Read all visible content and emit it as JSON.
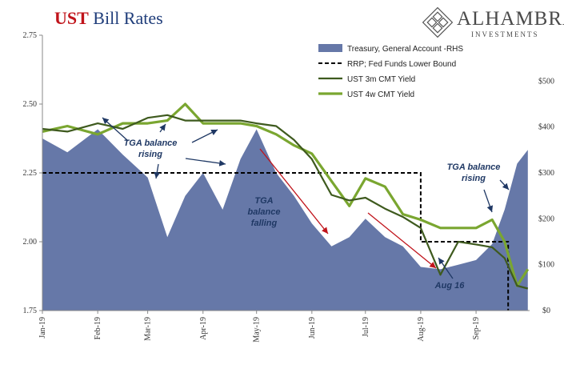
{
  "title": {
    "accent": "UST",
    "rest": "Bill Rates"
  },
  "logo": {
    "brand": "ALHAMBRA",
    "sub": "INVESTMENTS",
    "icon": "diamond-lattice-icon"
  },
  "chart_data": {
    "type": "line",
    "title": "UST Bill Rates",
    "x": [
      "2019-01-01",
      "2019-01-15",
      "2019-02-01",
      "2019-02-15",
      "2019-03-01",
      "2019-03-12",
      "2019-03-22",
      "2019-04-01",
      "2019-04-12",
      "2019-04-22",
      "2019-05-01",
      "2019-05-12",
      "2019-05-22",
      "2019-06-01",
      "2019-06-12",
      "2019-06-22",
      "2019-07-01",
      "2019-07-12",
      "2019-07-22",
      "2019-08-01",
      "2019-08-12",
      "2019-08-22",
      "2019-09-01",
      "2019-09-10",
      "2019-09-17",
      "2019-09-24",
      "2019-09-30"
    ],
    "x_tick_labels": [
      "Jan-19",
      "Feb-19",
      "Mar-19",
      "Apr-19",
      "May-19",
      "Jun-19",
      "Jul-19",
      "Aug-19",
      "Sep-19"
    ],
    "y_left": {
      "ticks": [
        "1.75",
        "2.00",
        "2.25",
        "2.50",
        "2.75"
      ],
      "ylim": [
        1.75,
        2.75
      ]
    },
    "y_right": {
      "ticks": [
        "$0",
        "$100",
        "$200",
        "$300",
        "$400",
        "$500"
      ],
      "ylim": [
        0,
        600
      ]
    },
    "grid": false,
    "legend_position": "top-right",
    "series": [
      {
        "name": "Treasury, General Account -RHS",
        "kind": "area",
        "axis": "right",
        "color": "#6678a8",
        "values": [
          375,
          345,
          395,
          340,
          290,
          160,
          250,
          300,
          220,
          330,
          395,
          300,
          250,
          190,
          140,
          160,
          200,
          160,
          140,
          95,
          90,
          100,
          110,
          145,
          220,
          320,
          350
        ]
      },
      {
        "name": "RRP; Fed Funds Lower Bound",
        "kind": "step",
        "axis": "left",
        "color": "#000000",
        "points": [
          [
            "2019-01-01",
            2.25
          ],
          [
            "2019-07-31",
            2.25
          ],
          [
            "2019-08-01",
            2.0
          ],
          [
            "2019-09-18",
            2.0
          ],
          [
            "2019-09-19",
            1.75
          ]
        ]
      },
      {
        "name": "UST 3m CMT Yield",
        "kind": "line",
        "axis": "left",
        "color": "#3e5a1e",
        "values": [
          2.41,
          2.4,
          2.43,
          2.41,
          2.45,
          2.46,
          2.44,
          2.44,
          2.44,
          2.44,
          2.43,
          2.42,
          2.37,
          2.3,
          2.17,
          2.15,
          2.16,
          2.12,
          2.09,
          2.05,
          1.88,
          2.0,
          1.99,
          1.98,
          1.94,
          1.84,
          1.83
        ]
      },
      {
        "name": "UST 4w CMT Yield",
        "kind": "line",
        "axis": "left",
        "color": "#7aa630",
        "values": [
          2.4,
          2.42,
          2.39,
          2.43,
          2.43,
          2.44,
          2.5,
          2.43,
          2.43,
          2.43,
          2.42,
          2.39,
          2.35,
          2.32,
          2.22,
          2.13,
          2.23,
          2.2,
          2.1,
          2.08,
          2.05,
          2.05,
          2.05,
          2.08,
          2.0,
          1.84,
          1.9
        ]
      }
    ],
    "annotations": [
      {
        "text": [
          "TGA balance",
          "rising"
        ]
      },
      {
        "text": [
          "TGA",
          "balance",
          "falling"
        ]
      },
      {
        "text": [
          "TGA balance",
          "rising"
        ]
      },
      {
        "text": [
          "Aug 16"
        ]
      }
    ]
  }
}
